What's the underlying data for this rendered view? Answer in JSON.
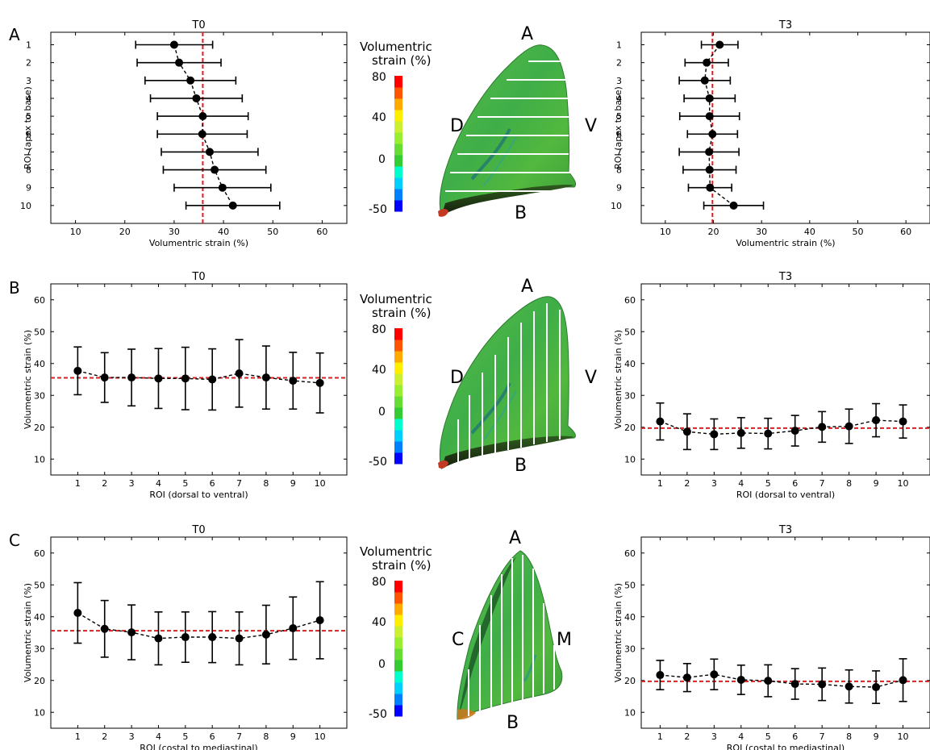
{
  "rows": [
    {
      "row_label": "A",
      "colorbar_title_lines": [
        "Volumentric",
        "strain (%)"
      ],
      "colorbar_ticks": [
        "80",
        "40",
        "0",
        "-50"
      ],
      "lung_labels": {
        "top": "A",
        "left": "D",
        "right": "V",
        "bottom": "B"
      },
      "lung_view": "sagittal",
      "slice_orientation": "horizontal"
    },
    {
      "row_label": "B",
      "colorbar_title_lines": [
        "Volumentric",
        "strain (%)"
      ],
      "colorbar_ticks": [
        "80",
        "40",
        "0",
        "-50"
      ],
      "lung_labels": {
        "top": "A",
        "left": "D",
        "right": "V",
        "bottom": "B"
      },
      "lung_view": "sagittal",
      "slice_orientation": "vertical"
    },
    {
      "row_label": "C",
      "colorbar_title_lines": [
        "Volumentric",
        "strain (%)"
      ],
      "colorbar_ticks": [
        "80",
        "40",
        "0",
        "-50"
      ],
      "lung_labels": {
        "top": "A",
        "left": "C",
        "right": "M",
        "bottom": "B"
      },
      "lung_view": "coronal",
      "slice_orientation": "vertical"
    }
  ],
  "colors": {
    "marker": "#000000",
    "error_bar": "#000000",
    "connector": "#000000",
    "reference_line": "#e41a1c",
    "colorbar": [
      "#0000ff",
      "#0080ff",
      "#00cfff",
      "#00ffcc",
      "#33cc33",
      "#66dd33",
      "#99ee33",
      "#ccee33",
      "#ffee00",
      "#ffaa00",
      "#ff5500",
      "#ff0000"
    ],
    "lung_main": "#4caf3c",
    "lung_mid": "#2fa85a",
    "lung_light": "#7fcf40",
    "lung_edge": "#1f6b2e",
    "lung_dark": "#1a3d14",
    "lung_red": "#cc3322"
  },
  "chart_data": [
    {
      "type": "scatter",
      "orientation": "horizontal",
      "title": "T0",
      "xlabel": "Volumentric strain (%)",
      "ylabel": "ROI (apex to base)",
      "xlim": [
        5,
        65
      ],
      "ylim": [
        0.3,
        11.0
      ],
      "xticks": [
        "10",
        "20",
        "30",
        "40",
        "50",
        "60"
      ],
      "categories": [
        "1",
        "2",
        "3",
        "4",
        "5",
        "6",
        "7",
        "8",
        "9",
        "10"
      ],
      "values": [
        30,
        31,
        33.3,
        34.5,
        35.8,
        35.7,
        37.2,
        38.2,
        39.8,
        41.9
      ],
      "error": [
        7.8,
        8.5,
        9.2,
        9.3,
        9.2,
        9.1,
        9.8,
        10.4,
        9.8,
        9.5
      ],
      "reference_line": 35.8
    },
    {
      "type": "scatter",
      "orientation": "horizontal",
      "title": "T3",
      "xlabel": "Volumentric strain (%)",
      "ylabel": "ROI (apex to base)",
      "xlim": [
        5,
        65
      ],
      "ylim": [
        0.3,
        11.0
      ],
      "xticks": [
        "10",
        "20",
        "30",
        "40",
        "50",
        "60"
      ],
      "categories": [
        "1",
        "2",
        "3",
        "4",
        "5",
        "6",
        "7",
        "8",
        "9",
        "10"
      ],
      "values": [
        21.3,
        18.6,
        18.2,
        19.2,
        19.2,
        19.8,
        19.1,
        19.2,
        19.3,
        24.2
      ],
      "error": [
        3.8,
        4.5,
        5.3,
        5.3,
        6.2,
        5.2,
        6.2,
        5.5,
        4.5,
        6.2
      ],
      "reference_line": 19.8
    },
    {
      "type": "scatter",
      "orientation": "vertical",
      "title": "T0",
      "xlabel": "ROI (dorsal to ventral)",
      "ylabel": "Volumentric strain (%)",
      "xlim": [
        0,
        11
      ],
      "ylim": [
        5,
        65
      ],
      "yticks": [
        "10",
        "20",
        "30",
        "40",
        "50",
        "60"
      ],
      "categories": [
        "1",
        "2",
        "3",
        "4",
        "5",
        "6",
        "7",
        "8",
        "9",
        "10"
      ],
      "values": [
        37.7,
        35.6,
        35.6,
        35.3,
        35.3,
        35.0,
        36.9,
        35.6,
        34.6,
        33.9
      ],
      "error": [
        7.5,
        7.8,
        8.9,
        9.4,
        9.8,
        9.6,
        10.6,
        9.9,
        8.9,
        9.4
      ],
      "reference_line": 35.5
    },
    {
      "type": "scatter",
      "orientation": "vertical",
      "title": "T3",
      "xlabel": "ROI (dorsal to ventral)",
      "ylabel": "Volumentric strain (%)",
      "xlim": [
        0.3,
        11.0
      ],
      "ylim": [
        5,
        65
      ],
      "yticks": [
        "10",
        "20",
        "30",
        "40",
        "50",
        "60"
      ],
      "categories": [
        "1",
        "2",
        "3",
        "4",
        "5",
        "6",
        "7",
        "8",
        "9",
        "10"
      ],
      "values": [
        21.8,
        18.6,
        17.8,
        18.2,
        18.0,
        18.9,
        20.1,
        20.3,
        22.2,
        21.8
      ],
      "error": [
        5.8,
        5.6,
        4.8,
        4.8,
        4.8,
        4.8,
        4.8,
        5.4,
        5.2,
        5.2
      ],
      "reference_line": 19.7
    },
    {
      "type": "scatter",
      "orientation": "vertical",
      "title": "T0",
      "xlabel": "ROI (costal to mediastinal)",
      "ylabel": "Volumentric strain (%)",
      "xlim": [
        0,
        11
      ],
      "ylim": [
        5,
        65
      ],
      "yticks": [
        "10",
        "20",
        "30",
        "40",
        "50",
        "60"
      ],
      "categories": [
        "1",
        "2",
        "3",
        "4",
        "5",
        "6",
        "7",
        "8",
        "9",
        "10"
      ],
      "values": [
        41.2,
        36.2,
        35.1,
        33.2,
        33.6,
        33.6,
        33.2,
        34.4,
        36.4,
        38.9
      ],
      "error": [
        9.5,
        8.9,
        8.6,
        8.3,
        7.9,
        8.0,
        8.3,
        9.2,
        9.8,
        12.1
      ],
      "reference_line": 35.6
    },
    {
      "type": "scatter",
      "orientation": "vertical",
      "title": "T3",
      "xlabel": "ROI (costal to mediastinal)",
      "ylabel": "Volumentric strain (%)",
      "xlim": [
        0.3,
        11.0
      ],
      "ylim": [
        5,
        65
      ],
      "yticks": [
        "10",
        "20",
        "30",
        "40",
        "50",
        "60"
      ],
      "categories": [
        "1",
        "2",
        "3",
        "4",
        "5",
        "6",
        "7",
        "8",
        "9",
        "10"
      ],
      "values": [
        21.7,
        20.9,
        21.9,
        20.2,
        19.9,
        18.9,
        18.8,
        18.1,
        17.9,
        20.1
      ],
      "error": [
        4.6,
        4.4,
        4.8,
        4.6,
        5.0,
        4.8,
        5.1,
        5.2,
        5.1,
        6.7
      ],
      "reference_line": 19.7
    }
  ]
}
